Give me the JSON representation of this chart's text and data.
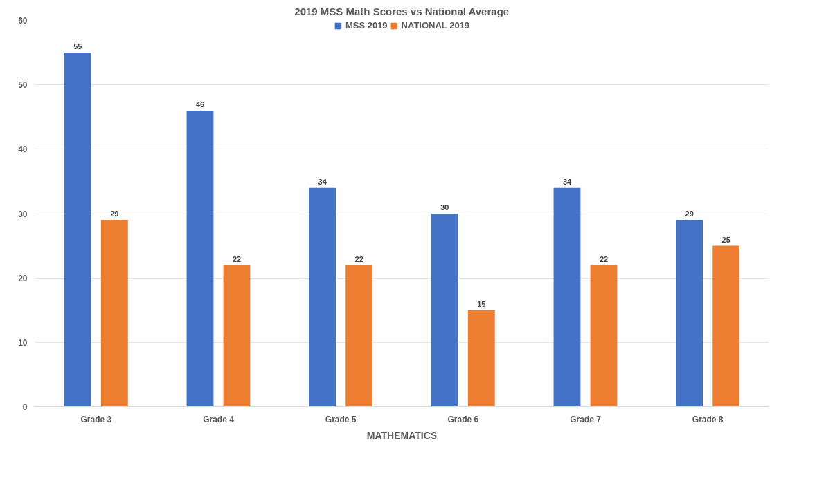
{
  "chart_data": {
    "type": "bar",
    "title": "2019 MSS Math Scores vs National Average",
    "xlabel": "MATHEMATICS",
    "categories": [
      "Grade 3",
      "Grade 4",
      "Grade 5",
      "Grade 6",
      "Grade 7",
      "Grade 8"
    ],
    "series": [
      {
        "name": "MSS 2019",
        "color": "#4472c4",
        "values": [
          55,
          46,
          34,
          30,
          34,
          29
        ]
      },
      {
        "name": "NATIONAL 2019",
        "color": "#ed7d31",
        "values": [
          29,
          22,
          22,
          15,
          22,
          25
        ]
      }
    ],
    "ylim": [
      0,
      60
    ],
    "yticks": [
      0,
      10,
      20,
      30,
      40,
      50,
      60
    ],
    "grid": "y",
    "legend": "top",
    "data_labels": true
  }
}
